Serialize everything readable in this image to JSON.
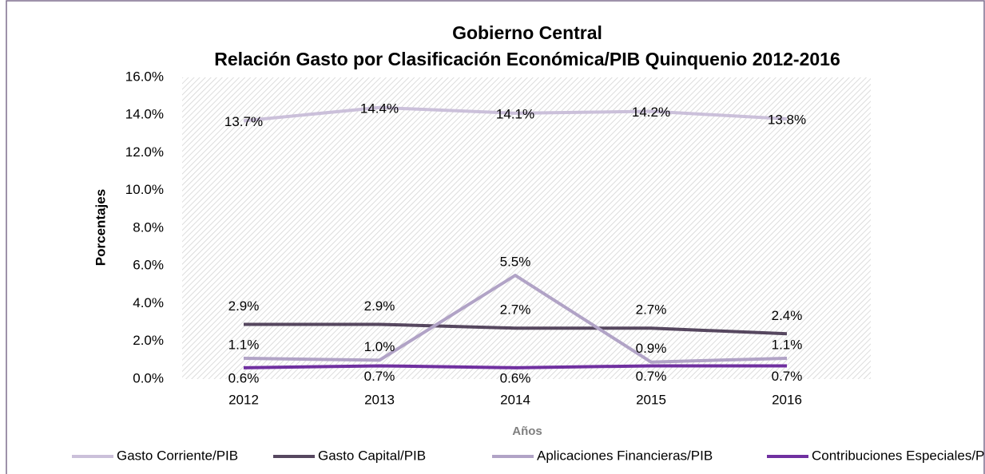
{
  "chart_data": {
    "type": "line",
    "title": "Gobierno Central",
    "subtitle": "Relación Gasto por Clasificación Económica/PIB Quinquenio 2012-2016",
    "x_label": "Años",
    "y_label": "Porcentajes",
    "categories": [
      "2012",
      "2013",
      "2014",
      "2015",
      "2016"
    ],
    "series": [
      {
        "name": "Gasto Corriente/PIB",
        "color": "#cbc0da",
        "values": [
          13.7,
          14.4,
          14.1,
          14.2,
          13.8
        ],
        "value_labels": [
          "13.7%",
          "14.4%",
          "14.1%",
          "14.2%",
          "13.8%"
        ]
      },
      {
        "name": "Gasto Capital/PIB",
        "color": "#56475f",
        "values": [
          2.9,
          2.9,
          2.7,
          2.7,
          2.4
        ],
        "value_labels": [
          "2.9%",
          "2.9%",
          "2.7%",
          "2.7%",
          "2.4%"
        ]
      },
      {
        "name": "Aplicaciones Financieras/PIB",
        "color": "#b1a3c6",
        "values": [
          1.1,
          1.0,
          5.5,
          0.9,
          1.1
        ],
        "value_labels": [
          "1.1%",
          "1.0%",
          "5.5%",
          "0.9%",
          "1.1%"
        ]
      },
      {
        "name": "Contribuciones Especiales/PIB",
        "color": "#7030a0",
        "values": [
          0.6,
          0.7,
          0.6,
          0.7,
          0.7
        ],
        "value_labels": [
          "0.6%",
          "0.7%",
          "0.6%",
          "0.7%",
          "0.7%"
        ]
      }
    ],
    "ylim": [
      0,
      16
    ],
    "yticks": [
      {
        "value": 0,
        "label": "0.0%"
      },
      {
        "value": 2,
        "label": "2.0%"
      },
      {
        "value": 4,
        "label": "4.0%"
      },
      {
        "value": 6,
        "label": "6.0%"
      },
      {
        "value": 8,
        "label": "8.0%"
      },
      {
        "value": 10,
        "label": "10.0%"
      },
      {
        "value": 12,
        "label": "12.0%"
      },
      {
        "value": 14,
        "label": "14.0%"
      },
      {
        "value": 16,
        "label": "16.0%"
      }
    ],
    "legend": "bottom"
  }
}
